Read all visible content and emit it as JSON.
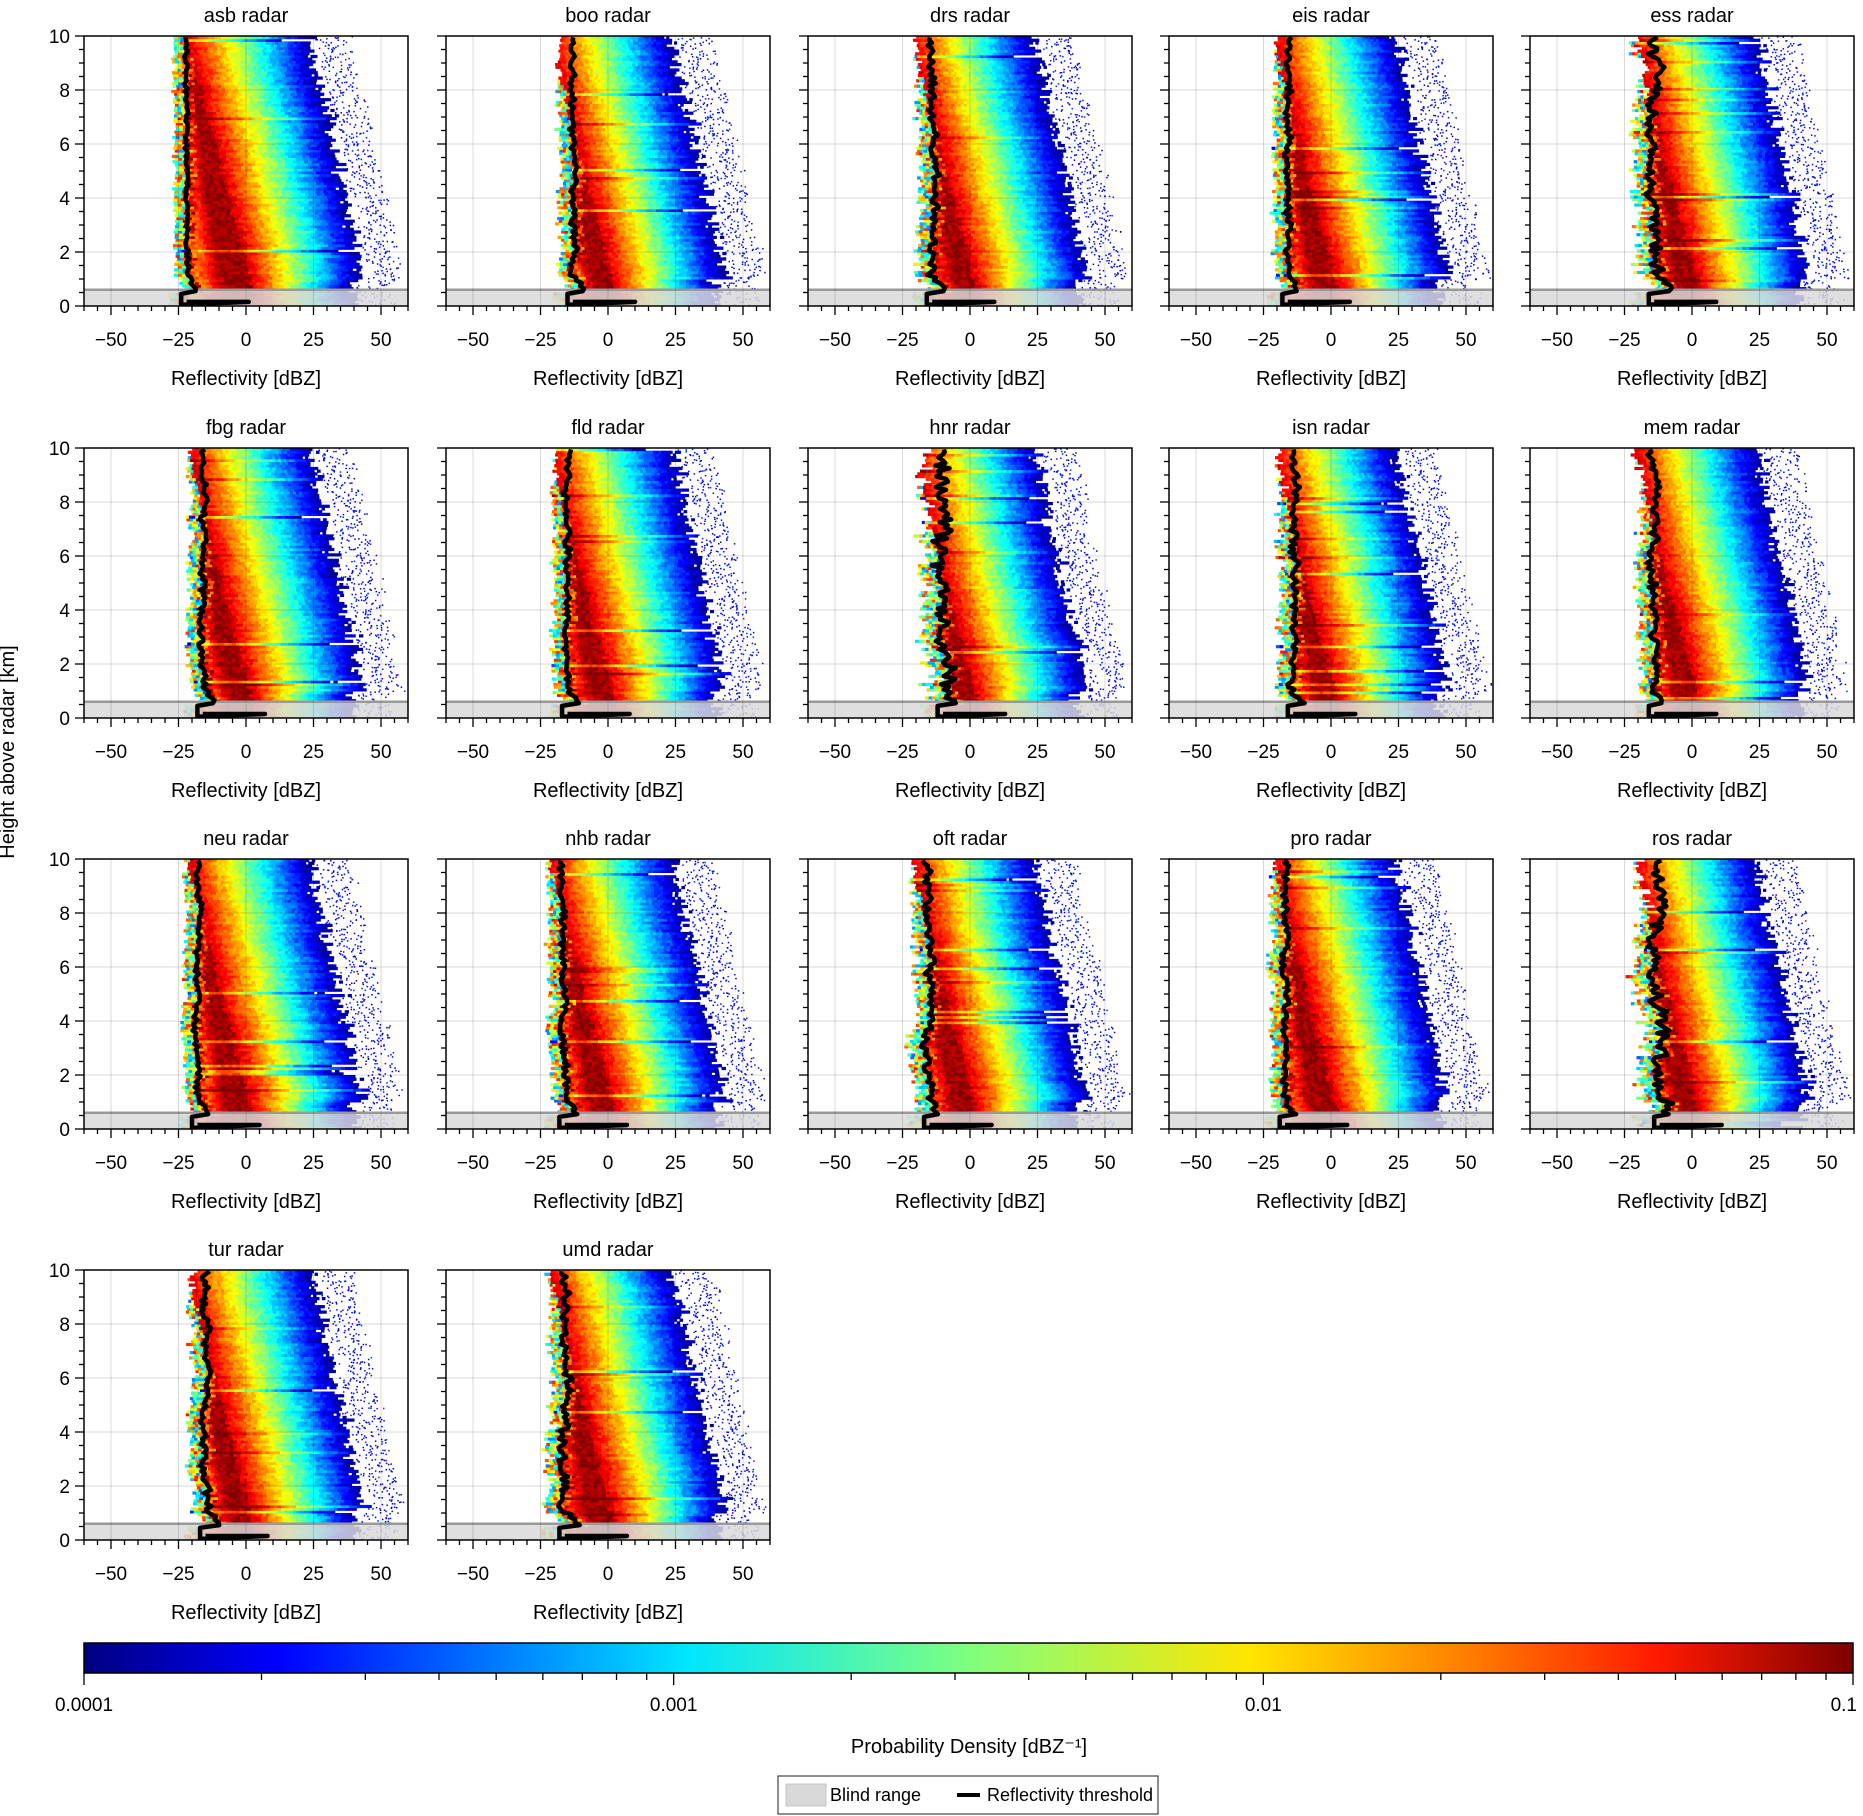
{
  "chart_data": {
    "type": "heatmap",
    "description_units": {
      "x_label": "Reflectivity [dBZ]",
      "y_label": "Height above radar [km]"
    },
    "xlim": [
      -60,
      60
    ],
    "ylim": [
      0,
      10
    ],
    "x_ticks": [
      -50,
      -25,
      0,
      25,
      50
    ],
    "x_tick_labels": [
      "−50",
      "−25",
      "0",
      "25",
      "50"
    ],
    "y_ticks": [
      0,
      2,
      4,
      6,
      8,
      10
    ],
    "y_tick_labels": [
      "0",
      "2",
      "4",
      "6",
      "8",
      "10"
    ],
    "grid": true,
    "blind_range_km": 0.6,
    "panels": [
      {
        "title": "asb radar",
        "threshold_low": -22,
        "noise": 0.4,
        "spread": 1.0
      },
      {
        "title": "boo radar",
        "threshold_low": -13,
        "noise": 0.6,
        "spread": 1.0
      },
      {
        "title": "drs radar",
        "threshold_low": -14,
        "noise": 0.8,
        "spread": 1.05
      },
      {
        "title": "eis radar",
        "threshold_low": -16,
        "noise": 0.6,
        "spread": 1.0
      },
      {
        "title": "ess radar",
        "threshold_low": -14,
        "noise": 1.2,
        "spread": 1.0
      },
      {
        "title": "fbg radar",
        "threshold_low": -16,
        "noise": 0.6,
        "spread": 1.0
      },
      {
        "title": "fld radar",
        "threshold_low": -15,
        "noise": 0.6,
        "spread": 1.0
      },
      {
        "title": "hnr radar",
        "threshold_low": -10,
        "noise": 1.6,
        "spread": 1.05
      },
      {
        "title": "isn radar",
        "threshold_low": -14,
        "noise": 0.8,
        "spread": 1.0
      },
      {
        "title": "mem radar",
        "threshold_low": -14,
        "noise": 0.8,
        "spread": 1.0
      },
      {
        "title": "neu radar",
        "threshold_low": -18,
        "noise": 0.5,
        "spread": 1.0
      },
      {
        "title": "nhb radar",
        "threshold_low": -16,
        "noise": 0.7,
        "spread": 1.0
      },
      {
        "title": "oft radar",
        "threshold_low": -15,
        "noise": 0.9,
        "spread": 1.0
      },
      {
        "title": "pro radar",
        "threshold_low": -17,
        "noise": 0.6,
        "spread": 1.0
      },
      {
        "title": "ros radar",
        "threshold_low": -12,
        "noise": 1.5,
        "spread": 1.0
      },
      {
        "title": "tur radar",
        "threshold_low": -15,
        "noise": 0.8,
        "spread": 1.0
      },
      {
        "title": "umd radar",
        "threshold_low": -16,
        "noise": 0.9,
        "spread": 1.0
      }
    ],
    "colorbar": {
      "label": "Probability Density [dBZ⁻¹]",
      "scale": "log",
      "range": [
        0.0001,
        0.1
      ],
      "tick_values": [
        0.0001,
        0.001,
        0.01,
        0.1
      ],
      "tick_labels": [
        "0.0001",
        "0.001",
        "0.01",
        "0.1"
      ],
      "colormap": "jet",
      "colors": [
        "#00007f",
        "#0000ff",
        "#007fff",
        "#00ffff",
        "#7fff7f",
        "#ffff00",
        "#ff7f00",
        "#ff0000",
        "#7f0000"
      ]
    },
    "legend": {
      "placement": "bottom-center",
      "entries": [
        {
          "label": "Blind range",
          "color": "#d9d9d9"
        },
        {
          "label": "Reflectivity threshold",
          "color": "#000000"
        }
      ]
    }
  }
}
